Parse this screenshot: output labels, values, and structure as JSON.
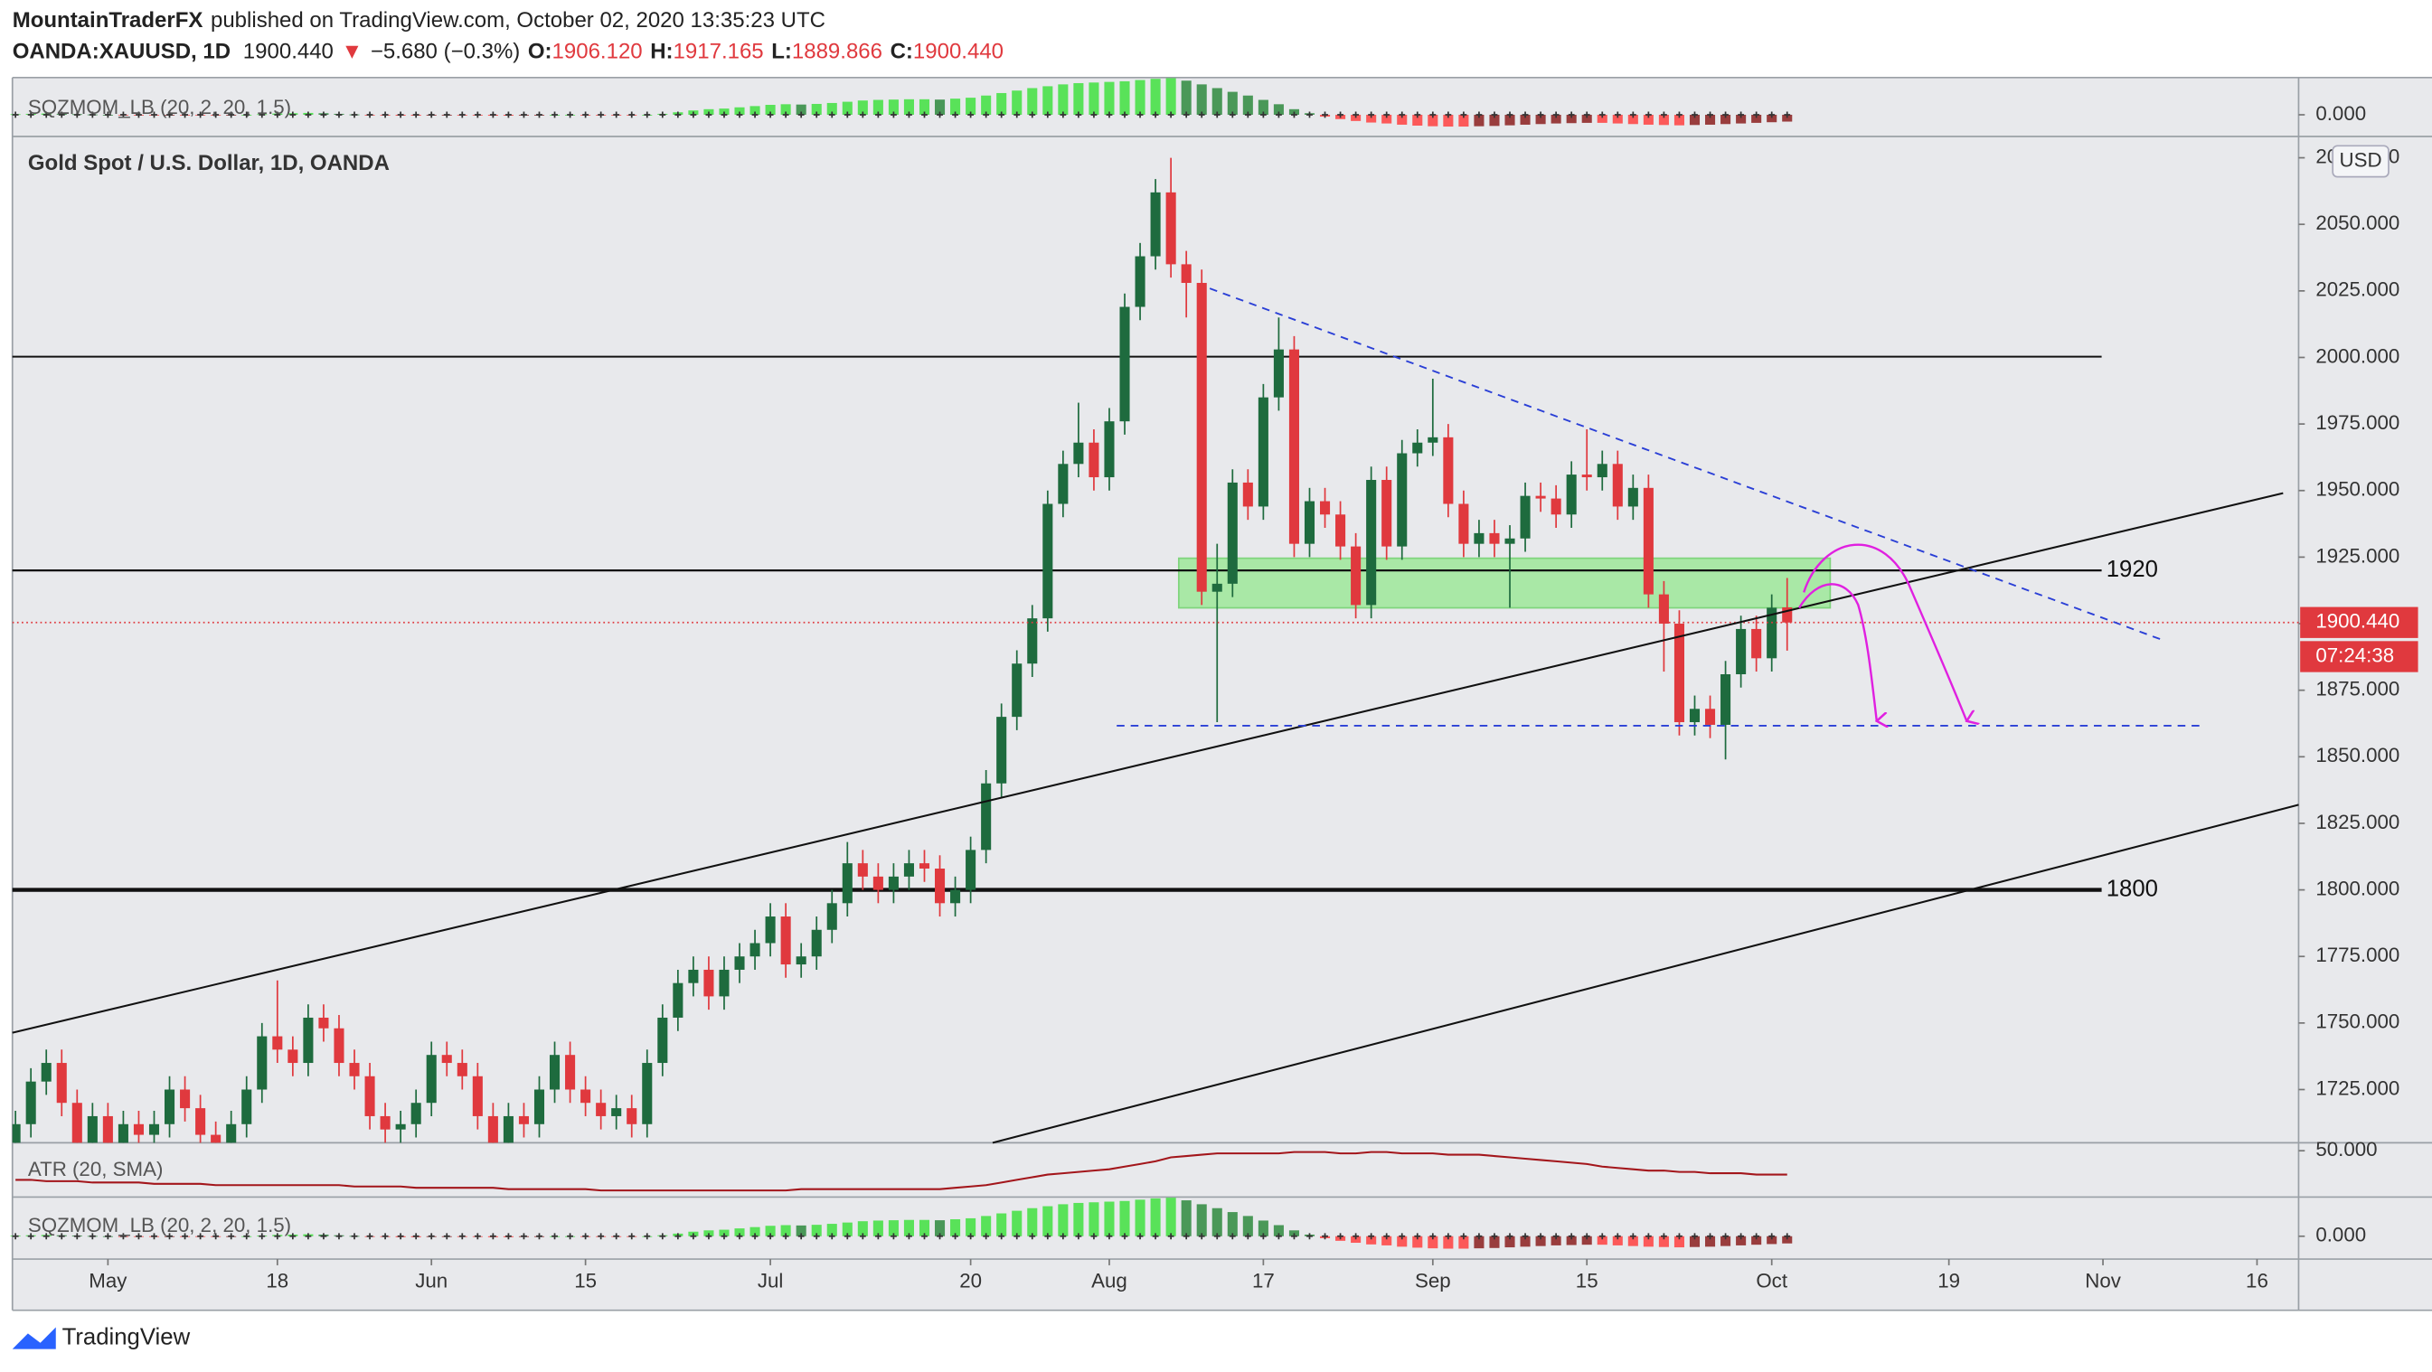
{
  "header": {
    "publisher": "MountainTraderFX",
    "published": "published on TradingView.com, October 02, 2020 13:35:23 UTC",
    "symbol": "OANDA:XAUUSD, 1D",
    "last": "1900.440",
    "arrow": "▼",
    "change": "−5.680 (−0.3%)",
    "o_label": "O:",
    "o": "1906.120",
    "h_label": "H:",
    "h": "1917.165",
    "l_label": "L:",
    "l": "1889.866",
    "c_label": "C:",
    "c": "1900.440"
  },
  "footer": {
    "brand": "TradingView"
  },
  "chart_data": [
    {
      "type": "candlestick",
      "title": "Gold Spot / U.S. Dollar, 1D, OANDA",
      "currency": "USD",
      "countdown": "07:24:38",
      "up_color": "#1e6b3e",
      "down_color": "#e0393e",
      "xlim": [
        -0.2,
        148.2
      ],
      "xticks": [
        {
          "value": 6,
          "label": "May"
        },
        {
          "value": 17,
          "label": "18"
        },
        {
          "value": 27,
          "label": "Jun"
        },
        {
          "value": 37,
          "label": "15"
        },
        {
          "value": 49,
          "label": "Jul"
        },
        {
          "value": 62,
          "label": "20"
        },
        {
          "value": 71,
          "label": "Aug"
        },
        {
          "value": 81,
          "label": "17"
        },
        {
          "value": 92,
          "label": "Sep"
        },
        {
          "value": 102,
          "label": "15"
        },
        {
          "value": 114,
          "label": "Oct"
        },
        {
          "value": 125.5,
          "label": "19"
        },
        {
          "value": 135.5,
          "label": "Nov"
        },
        {
          "value": 145.5,
          "label": "16"
        }
      ],
      "ylim": [
        1705,
        2083
      ],
      "yticks": [
        {
          "value": 1725,
          "label": "1725.000"
        },
        {
          "value": 1750,
          "label": "1750.000"
        },
        {
          "value": 1775,
          "label": "1775.000"
        },
        {
          "value": 1800,
          "label": "1800.000"
        },
        {
          "value": 1825,
          "label": "1825.000"
        },
        {
          "value": 1850,
          "label": "1850.000"
        },
        {
          "value": 1875,
          "label": "1875.000"
        },
        {
          "value": 1900,
          "label": "1900.000"
        },
        {
          "value": 1925,
          "label": "1925.000"
        },
        {
          "value": 1950,
          "label": "1950.000"
        },
        {
          "value": 1975,
          "label": "1975.000"
        },
        {
          "value": 2000,
          "label": "2000.000"
        },
        {
          "value": 2025,
          "label": "2025.000"
        },
        {
          "value": 2050,
          "label": "2050.000"
        },
        {
          "value": 2075,
          "label": "2075.000"
        }
      ],
      "levels": [
        1920,
        1800
      ],
      "open": [
        1705,
        1712,
        1728,
        1735,
        1720,
        1705,
        1715,
        1700,
        1712,
        1708,
        1712,
        1725,
        1718,
        1708,
        1705,
        1712,
        1725,
        1745,
        1740,
        1735,
        1752,
        1748,
        1735,
        1730,
        1715,
        1710,
        1712,
        1720,
        1738,
        1735,
        1730,
        1715,
        1705,
        1715,
        1712,
        1725,
        1738,
        1725,
        1720,
        1715,
        1718,
        1712,
        1735,
        1752,
        1765,
        1770,
        1760,
        1770,
        1775,
        1780,
        1790,
        1772,
        1775,
        1785,
        1795,
        1810,
        1805,
        1800,
        1805,
        1810,
        1808,
        1795,
        1800,
        1815,
        1840,
        1865,
        1885,
        1902,
        1945,
        1960,
        1968,
        1955,
        1976,
        2019,
        2038,
        2062,
        2035,
        2028,
        1912,
        1915,
        1953,
        1944,
        1985,
        2003,
        1930,
        1946,
        1941,
        1929,
        1907,
        1954,
        1929,
        1964,
        1968,
        1970,
        1945,
        1930,
        1934,
        1930,
        1932,
        1948,
        1947,
        1941,
        1956,
        1955,
        1960,
        1944,
        1951,
        1911,
        1900,
        1863,
        1868,
        1862,
        1881,
        1898,
        1887,
        1906.12
      ],
      "high": [
        1717,
        1733,
        1740,
        1740,
        1725,
        1720,
        1720,
        1717,
        1717,
        1717,
        1730,
        1730,
        1723,
        1713,
        1717,
        1730,
        1750,
        1766,
        1745,
        1757,
        1757,
        1753,
        1740,
        1735,
        1720,
        1717,
        1725,
        1743,
        1743,
        1740,
        1735,
        1720,
        1720,
        1720,
        1730,
        1743,
        1743,
        1730,
        1725,
        1723,
        1723,
        1740,
        1757,
        1770,
        1775,
        1775,
        1775,
        1780,
        1785,
        1795,
        1795,
        1780,
        1790,
        1800,
        1818,
        1815,
        1810,
        1810,
        1815,
        1815,
        1813,
        1805,
        1820,
        1845,
        1870,
        1890,
        1907,
        1950,
        1965,
        1983,
        1973,
        1981,
        2024,
        2043,
        2067,
        2075,
        2040,
        2033,
        1930,
        1958,
        1958,
        1990,
        2015,
        2008,
        1951,
        1951,
        1946,
        1934,
        1959,
        1959,
        1969,
        1973,
        1992,
        1975,
        1950,
        1939,
        1939,
        1937,
        1953,
        1953,
        1952,
        1961,
        1973,
        1965,
        1965,
        1956,
        1956,
        1916,
        1905,
        1873,
        1873,
        1886,
        1903,
        1903,
        1911,
        1917.165
      ],
      "low": [
        1700,
        1707,
        1723,
        1715,
        1700,
        1700,
        1695,
        1695,
        1703,
        1703,
        1707,
        1713,
        1703,
        1700,
        1700,
        1707,
        1720,
        1735,
        1730,
        1730,
        1743,
        1730,
        1725,
        1710,
        1705,
        1705,
        1707,
        1715,
        1730,
        1725,
        1710,
        1700,
        1700,
        1707,
        1707,
        1720,
        1720,
        1715,
        1710,
        1710,
        1707,
        1707,
        1730,
        1747,
        1760,
        1755,
        1755,
        1765,
        1770,
        1775,
        1767,
        1767,
        1770,
        1780,
        1790,
        1800,
        1795,
        1795,
        1800,
        1803,
        1790,
        1790,
        1795,
        1810,
        1835,
        1860,
        1880,
        1897,
        1940,
        1955,
        1950,
        1950,
        1971,
        2014,
        2033,
        2030,
        2015,
        1907,
        1863,
        1910,
        1939,
        1939,
        1980,
        1925,
        1925,
        1936,
        1924,
        1902,
        1902,
        1924,
        1924,
        1959,
        1963,
        1940,
        1925,
        1925,
        1925,
        1906,
        1927,
        1942,
        1936,
        1936,
        1950,
        1950,
        1939,
        1939,
        1906,
        1882,
        1858,
        1858,
        1857,
        1849,
        1876,
        1882,
        1882,
        1889.866
      ],
      "close": [
        1712,
        1728,
        1735,
        1720,
        1705,
        1715,
        1700,
        1712,
        1708,
        1712,
        1725,
        1718,
        1708,
        1705,
        1712,
        1725,
        1745,
        1740,
        1735,
        1752,
        1748,
        1735,
        1730,
        1715,
        1710,
        1712,
        1720,
        1738,
        1735,
        1730,
        1715,
        1705,
        1715,
        1712,
        1725,
        1738,
        1725,
        1720,
        1715,
        1718,
        1712,
        1735,
        1752,
        1765,
        1770,
        1760,
        1770,
        1775,
        1780,
        1790,
        1772,
        1775,
        1785,
        1795,
        1810,
        1805,
        1800,
        1805,
        1810,
        1808,
        1795,
        1800,
        1815,
        1840,
        1865,
        1885,
        1902,
        1945,
        1960,
        1968,
        1955,
        1976,
        2019,
        2038,
        2062,
        2035,
        2028,
        1912,
        1915,
        1953,
        1944,
        1985,
        2003,
        1930,
        1946,
        1941,
        1929,
        1907,
        1954,
        1929,
        1964,
        1968,
        1970,
        1945,
        1930,
        1934,
        1930,
        1932,
        1948,
        1947,
        1941,
        1956,
        1955,
        1960,
        1944,
        1951,
        1911,
        1900,
        1863,
        1868,
        1862,
        1881,
        1898,
        1887,
        1906,
        1900.44
      ]
    },
    {
      "type": "bar",
      "title": "SQZMOM_LB (20, 2, 20, 1.5)",
      "ylim": [
        -70,
        120
      ],
      "yticks": [
        {
          "value": 0,
          "label": "0.000"
        }
      ],
      "values": [
        2,
        3,
        4,
        3,
        2,
        1,
        0,
        -1,
        -2,
        -2,
        -1,
        -1,
        -2,
        -2,
        -1,
        0,
        2,
        4,
        5,
        6,
        5,
        3,
        1,
        -1,
        -2,
        -3,
        -3,
        -2,
        -1,
        -1,
        -2,
        -3,
        -3,
        -2,
        -1,
        0,
        0,
        -1,
        -1,
        -1,
        -2,
        0,
        3,
        8,
        14,
        18,
        20,
        24,
        28,
        32,
        34,
        33,
        35,
        38,
        42,
        46,
        48,
        49,
        50,
        50,
        49,
        52,
        55,
        62,
        70,
        78,
        86,
        92,
        98,
        102,
        104,
        106,
        108,
        112,
        116,
        118,
        110,
        98,
        86,
        74,
        62,
        48,
        34,
        18,
        5,
        -6,
        -14,
        -20,
        -25,
        -28,
        -32,
        -35,
        -37,
        -38,
        -38,
        -37,
        -36,
        -34,
        -32,
        -30,
        -28,
        -27,
        -26,
        -26,
        -28,
        -30,
        -32,
        -33,
        -34,
        -33,
        -32,
        -30,
        -28,
        -26,
        -24,
        -22
      ]
    },
    {
      "type": "line",
      "title": "ATR (20, SMA)",
      "color": "#a3161b",
      "ylim": [
        15,
        56
      ],
      "yticks": [
        {
          "value": 50,
          "label": "50.000"
        }
      ],
      "values": [
        28,
        28,
        27,
        27,
        27,
        26,
        26,
        26,
        26,
        25,
        25,
        25,
        25,
        24,
        24,
        24,
        24,
        24,
        24,
        24,
        24,
        24,
        23,
        23,
        23,
        23,
        22,
        22,
        22,
        22,
        22,
        22,
        21,
        21,
        21,
        21,
        21,
        21,
        20,
        20,
        20,
        20,
        20,
        20,
        20,
        20,
        20,
        20,
        20,
        20,
        20,
        21,
        21,
        21,
        21,
        21,
        21,
        21,
        21,
        21,
        21,
        22,
        23,
        24,
        26,
        28,
        30,
        32,
        33,
        34,
        35,
        36,
        38,
        40,
        42,
        45,
        46,
        47,
        48,
        48,
        48,
        48,
        48,
        49,
        49,
        49,
        48,
        48,
        49,
        49,
        48,
        48,
        48,
        47,
        47,
        47,
        46,
        45,
        44,
        43,
        42,
        41,
        40,
        38,
        37,
        36,
        35,
        35,
        34,
        34,
        33,
        33,
        33,
        32,
        32,
        32
      ]
    }
  ]
}
